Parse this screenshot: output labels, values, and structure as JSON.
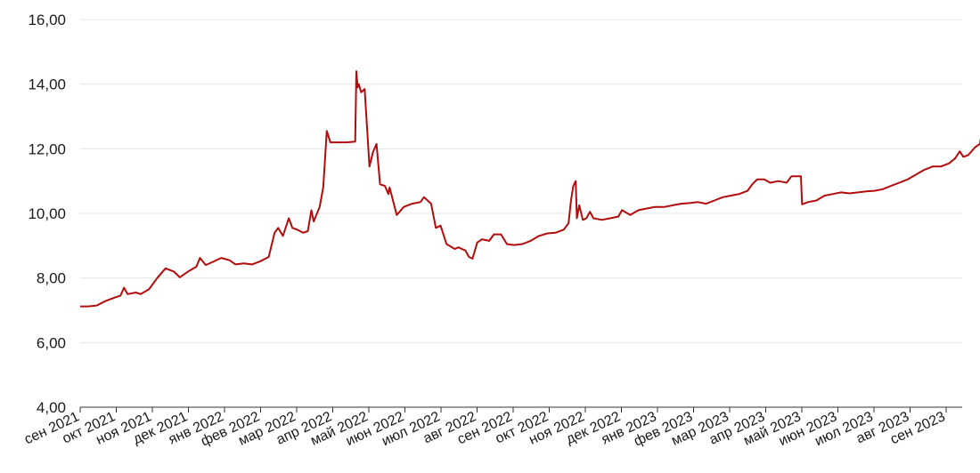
{
  "chart_data": {
    "type": "line",
    "title": "",
    "xlabel": "",
    "ylabel": "",
    "ylim": [
      4,
      16
    ],
    "y_ticks": [
      "4,00",
      "6,00",
      "8,00",
      "10,00",
      "12,00",
      "14,00",
      "16,00"
    ],
    "x_tick_labels": [
      "сен 2021",
      "окт 2021",
      "ноя 2021",
      "дек 2021",
      "янв 2022",
      "фев 2022",
      "мар 2022",
      "апр 2022",
      "май 2022",
      "июн 2022",
      "июл 2022",
      "авг 2022",
      "сен 2022",
      "окт 2022",
      "ноя 2022",
      "дек 2022",
      "янв 2023",
      "фев 2023",
      "мар 2023",
      "апр 2023",
      "май 2023",
      "июн 2023",
      "июл 2023",
      "авг 2023",
      "сен 2023"
    ],
    "grid": true,
    "legend": "none",
    "series_color": "#b30c0c",
    "series": [
      {
        "points": [
          [
            "2021-09-01",
            7.12
          ],
          [
            "2021-09-08",
            7.12
          ],
          [
            "2021-09-15",
            7.15
          ],
          [
            "2021-09-22",
            7.28
          ],
          [
            "2021-09-29",
            7.38
          ],
          [
            "2021-10-05",
            7.45
          ],
          [
            "2021-10-08",
            7.7
          ],
          [
            "2021-10-11",
            7.5
          ],
          [
            "2021-10-18",
            7.55
          ],
          [
            "2021-10-22",
            7.5
          ],
          [
            "2021-10-29",
            7.65
          ],
          [
            "2021-11-05",
            8.0
          ],
          [
            "2021-11-12",
            8.3
          ],
          [
            "2021-11-19",
            8.2
          ],
          [
            "2021-11-24",
            8.02
          ],
          [
            "2021-12-01",
            8.2
          ],
          [
            "2021-12-08",
            8.35
          ],
          [
            "2021-12-11",
            8.62
          ],
          [
            "2021-12-16",
            8.4
          ],
          [
            "2021-12-22",
            8.5
          ],
          [
            "2021-12-29",
            8.62
          ],
          [
            "2022-01-05",
            8.55
          ],
          [
            "2022-01-10",
            8.42
          ],
          [
            "2022-01-17",
            8.45
          ],
          [
            "2022-01-24",
            8.42
          ],
          [
            "2022-01-31",
            8.52
          ],
          [
            "2022-02-07",
            8.65
          ],
          [
            "2022-02-12",
            9.4
          ],
          [
            "2022-02-15",
            9.55
          ],
          [
            "2022-02-19",
            9.3
          ],
          [
            "2022-02-24",
            9.85
          ],
          [
            "2022-02-27",
            9.55
          ],
          [
            "2022-03-03",
            9.5
          ],
          [
            "2022-03-08",
            9.4
          ],
          [
            "2022-03-12",
            9.45
          ],
          [
            "2022-03-15",
            10.1
          ],
          [
            "2022-03-17",
            9.75
          ],
          [
            "2022-03-22",
            10.2
          ],
          [
            "2022-03-25",
            10.8
          ],
          [
            "2022-03-28",
            12.55
          ],
          [
            "2022-03-31",
            12.2
          ],
          [
            "2022-04-07",
            12.2
          ],
          [
            "2022-04-14",
            12.2
          ],
          [
            "2022-04-21",
            12.22
          ],
          [
            "2022-04-22",
            14.4
          ],
          [
            "2022-04-23",
            13.9
          ],
          [
            "2022-04-24",
            14.0
          ],
          [
            "2022-04-26",
            13.75
          ],
          [
            "2022-04-29",
            13.85
          ],
          [
            "2022-05-03",
            11.45
          ],
          [
            "2022-05-06",
            11.9
          ],
          [
            "2022-05-09",
            12.15
          ],
          [
            "2022-05-12",
            10.9
          ],
          [
            "2022-05-16",
            10.85
          ],
          [
            "2022-05-19",
            10.6
          ],
          [
            "2022-05-20",
            10.8
          ],
          [
            "2022-05-26",
            9.95
          ],
          [
            "2022-06-01",
            10.2
          ],
          [
            "2022-06-08",
            10.3
          ],
          [
            "2022-06-15",
            10.35
          ],
          [
            "2022-06-18",
            10.5
          ],
          [
            "2022-06-24",
            10.3
          ],
          [
            "2022-06-28",
            9.55
          ],
          [
            "2022-07-02",
            9.62
          ],
          [
            "2022-07-07",
            9.05
          ],
          [
            "2022-07-14",
            8.9
          ],
          [
            "2022-07-17",
            8.95
          ],
          [
            "2022-07-23",
            8.85
          ],
          [
            "2022-07-26",
            8.65
          ],
          [
            "2022-07-29",
            8.6
          ],
          [
            "2022-08-02",
            9.1
          ],
          [
            "2022-08-06",
            9.2
          ],
          [
            "2022-08-12",
            9.15
          ],
          [
            "2022-08-16",
            9.35
          ],
          [
            "2022-08-22",
            9.35
          ],
          [
            "2022-08-27",
            9.05
          ],
          [
            "2022-09-02",
            9.02
          ],
          [
            "2022-09-09",
            9.05
          ],
          [
            "2022-09-16",
            9.15
          ],
          [
            "2022-09-23",
            9.3
          ],
          [
            "2022-09-30",
            9.38
          ],
          [
            "2022-10-07",
            9.4
          ],
          [
            "2022-10-14",
            9.5
          ],
          [
            "2022-10-18",
            9.7
          ],
          [
            "2022-10-20",
            10.4
          ],
          [
            "2022-10-22",
            10.85
          ],
          [
            "2022-10-24",
            11.0
          ],
          [
            "2022-10-25",
            9.85
          ],
          [
            "2022-10-27",
            10.25
          ],
          [
            "2022-10-30",
            9.8
          ],
          [
            "2022-11-02",
            9.85
          ],
          [
            "2022-11-05",
            10.05
          ],
          [
            "2022-11-08",
            9.85
          ],
          [
            "2022-11-15",
            9.8
          ],
          [
            "2022-11-22",
            9.85
          ],
          [
            "2022-11-29",
            9.9
          ],
          [
            "2022-12-02",
            10.1
          ],
          [
            "2022-12-09",
            9.95
          ],
          [
            "2022-12-16",
            10.1
          ],
          [
            "2022-12-23",
            10.15
          ],
          [
            "2022-12-30",
            10.2
          ],
          [
            "2023-01-07",
            10.2
          ],
          [
            "2023-01-14",
            10.25
          ],
          [
            "2023-01-21",
            10.3
          ],
          [
            "2023-01-28",
            10.32
          ],
          [
            "2023-02-04",
            10.35
          ],
          [
            "2023-02-11",
            10.3
          ],
          [
            "2023-02-18",
            10.4
          ],
          [
            "2023-02-25",
            10.5
          ],
          [
            "2023-03-04",
            10.55
          ],
          [
            "2023-03-11",
            10.6
          ],
          [
            "2023-03-18",
            10.7
          ],
          [
            "2023-03-22",
            10.9
          ],
          [
            "2023-03-26",
            11.05
          ],
          [
            "2023-04-01",
            11.05
          ],
          [
            "2023-04-06",
            10.95
          ],
          [
            "2023-04-13",
            11.0
          ],
          [
            "2023-04-20",
            10.95
          ],
          [
            "2023-04-24",
            11.15
          ],
          [
            "2023-05-02",
            11.15
          ],
          [
            "2023-05-03",
            10.28
          ],
          [
            "2023-05-08",
            10.35
          ],
          [
            "2023-05-15",
            10.4
          ],
          [
            "2023-05-22",
            10.55
          ],
          [
            "2023-05-29",
            10.6
          ],
          [
            "2023-06-05",
            10.65
          ],
          [
            "2023-06-12",
            10.62
          ],
          [
            "2023-06-19",
            10.65
          ],
          [
            "2023-06-26",
            10.68
          ],
          [
            "2023-07-03",
            10.7
          ],
          [
            "2023-07-10",
            10.75
          ],
          [
            "2023-07-17",
            10.85
          ],
          [
            "2023-07-24",
            10.95
          ],
          [
            "2023-07-31",
            11.05
          ],
          [
            "2023-08-07",
            11.2
          ],
          [
            "2023-08-14",
            11.35
          ],
          [
            "2023-08-21",
            11.45
          ],
          [
            "2023-08-28",
            11.45
          ],
          [
            "2023-09-04",
            11.55
          ],
          [
            "2023-09-09",
            11.7
          ],
          [
            "2023-09-13",
            11.92
          ],
          [
            "2023-09-16",
            11.75
          ],
          [
            "2023-09-20",
            11.8
          ],
          [
            "2023-09-26",
            12.05
          ],
          [
            "2023-09-30",
            12.15
          ],
          [
            "2023-10-02",
            12.6
          ]
        ]
      }
    ]
  }
}
